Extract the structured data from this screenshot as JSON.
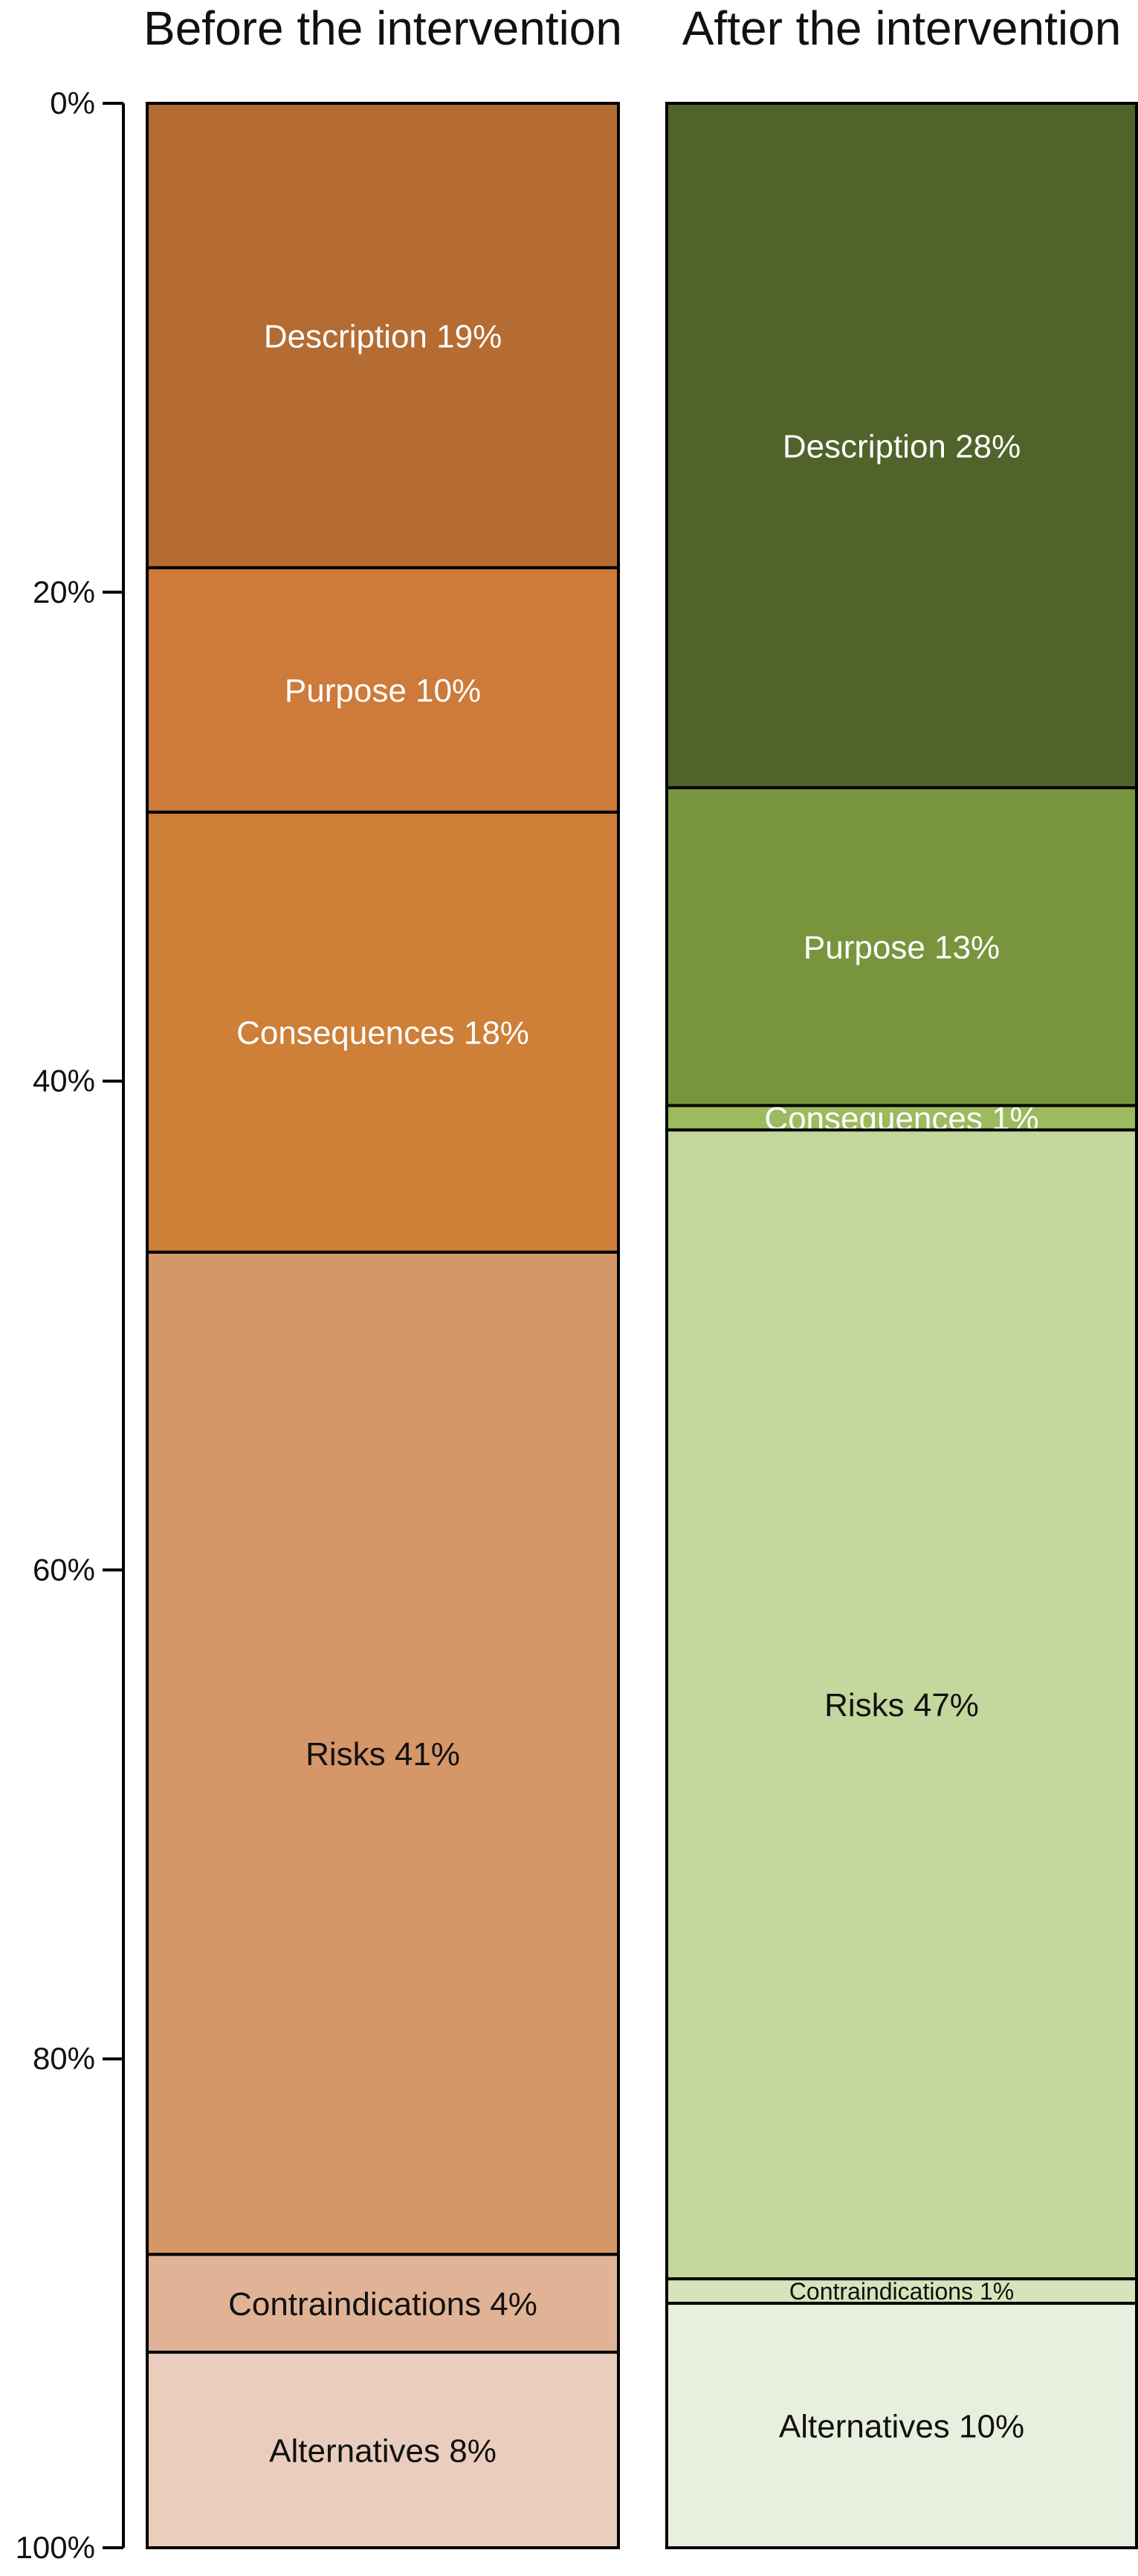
{
  "chart_data": {
    "type": "bar",
    "subtype": "stacked-100-percent",
    "ylim": [
      0,
      100
    ],
    "y_direction": "top-to-bottom",
    "yticks": [
      "0%",
      "20%",
      "40%",
      "60%",
      "80%",
      "100%"
    ],
    "ytick_values": [
      0,
      20,
      40,
      60,
      80,
      100
    ],
    "grid": false,
    "bars": [
      {
        "title": "Before the intervention",
        "segments": [
          {
            "name": "Description",
            "value": 19,
            "label": "Description 19%",
            "color": "#B46C33",
            "text_color": "#FFFFFF"
          },
          {
            "name": "Purpose",
            "value": 10,
            "label": "Purpose 10%",
            "color": "#CD7A3A",
            "text_color": "#FFFFFF"
          },
          {
            "name": "Consequences",
            "value": 18,
            "label": "Consequences 18%",
            "color": "#CE7F38",
            "text_color": "#FFFFFF"
          },
          {
            "name": "Risks",
            "value": 41,
            "label": "Risks 41%",
            "color": "#D59668",
            "text_color": "#111111"
          },
          {
            "name": "Contraindications",
            "value": 4,
            "label": "Contraindications 4%",
            "color": "#E0B396",
            "text_color": "#111111"
          },
          {
            "name": "Alternatives",
            "value": 8,
            "label": "Alternatives 8%",
            "color": "#EACDBC",
            "text_color": "#111111"
          }
        ]
      },
      {
        "title": "After the intervention",
        "segments": [
          {
            "name": "Description",
            "value": 28,
            "label": "Description 28%",
            "color": "#50632A",
            "text_color": "#FFFFFF"
          },
          {
            "name": "Purpose",
            "value": 13,
            "label": "Purpose 13%",
            "color": "#78953E",
            "text_color": "#FFFFFF"
          },
          {
            "name": "Consequences",
            "value": 1,
            "label": "Consequences 1%",
            "color": "#9CBA5E",
            "text_color": "#FFFFFF"
          },
          {
            "name": "Risks",
            "value": 47,
            "label": "Risks 47%",
            "color": "#C4D79D",
            "text_color": "#111111"
          },
          {
            "name": "Contraindications",
            "value": 1,
            "label": "Contraindications 1%",
            "color": "#D5E4BA",
            "text_color": "#111111",
            "small": true
          },
          {
            "name": "Alternatives",
            "value": 10,
            "label": "Alternatives 10%",
            "color": "#E9EFDE",
            "text_color": "#111111"
          }
        ]
      }
    ]
  }
}
